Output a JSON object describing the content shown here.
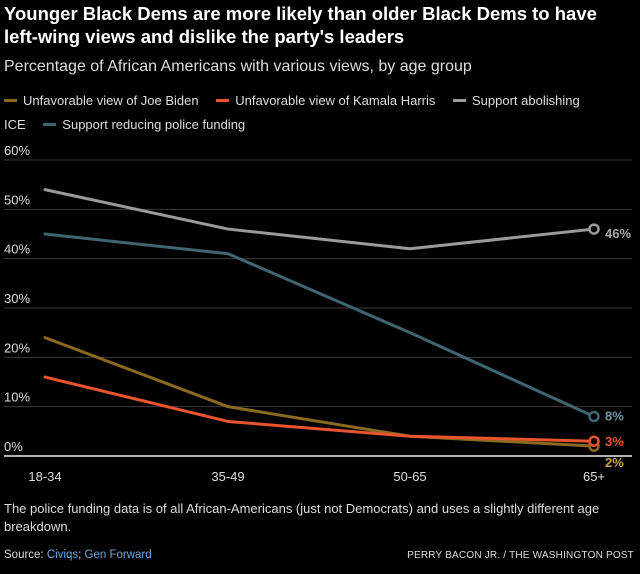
{
  "title": "Younger Black Dems are more likely than older Black Dems to have left-wing views and dislike the party's leaders",
  "subtitle": "Percentage of African Americans with various views, by age group",
  "note": "The police funding data is of all African-Americans (just not Democrats) and uses a slightly different age breakdown.",
  "source": {
    "prefix": "Source: ",
    "link1": "Civiqs",
    "separator": "; ",
    "link2": "Gen Forward"
  },
  "credit": "PERRY BACON JR. / THE WASHINGTON POST",
  "chart_data": {
    "type": "line",
    "title": "Percentage of African Americans with various views, by age group",
    "categories": [
      "18-34",
      "35-49",
      "50-65",
      "65+"
    ],
    "ylim": [
      0,
      60
    ],
    "yticks": [
      0,
      10,
      20,
      30,
      40,
      50,
      60
    ],
    "ytick_labels": [
      "0%",
      "10%",
      "20%",
      "30%",
      "40%",
      "50%",
      "60%"
    ],
    "grid": true,
    "legend_position": "top",
    "series": [
      {
        "name": "Unfavorable view of Joe Biden",
        "color": "#8b6a1f",
        "label_color": "#c9a24e",
        "values": [
          24,
          10,
          4,
          2
        ],
        "end_label": "2%"
      },
      {
        "name": "Unfavorable view of Kamala Harris",
        "color": "#e8542e",
        "label_color": "#e8542e",
        "values": [
          16,
          7,
          4,
          3
        ],
        "end_label": "3%"
      },
      {
        "name": "Support abolishing ICE",
        "color": "#9a9a9a",
        "label_color": "#a9a9a9",
        "values": [
          54,
          46,
          42,
          46
        ],
        "end_label": "46%"
      },
      {
        "name": "Support reducing police funding",
        "color": "#3f6472",
        "label_color": "#6e95a3",
        "values": [
          45,
          41,
          25,
          8
        ],
        "end_label": "8%"
      }
    ]
  }
}
